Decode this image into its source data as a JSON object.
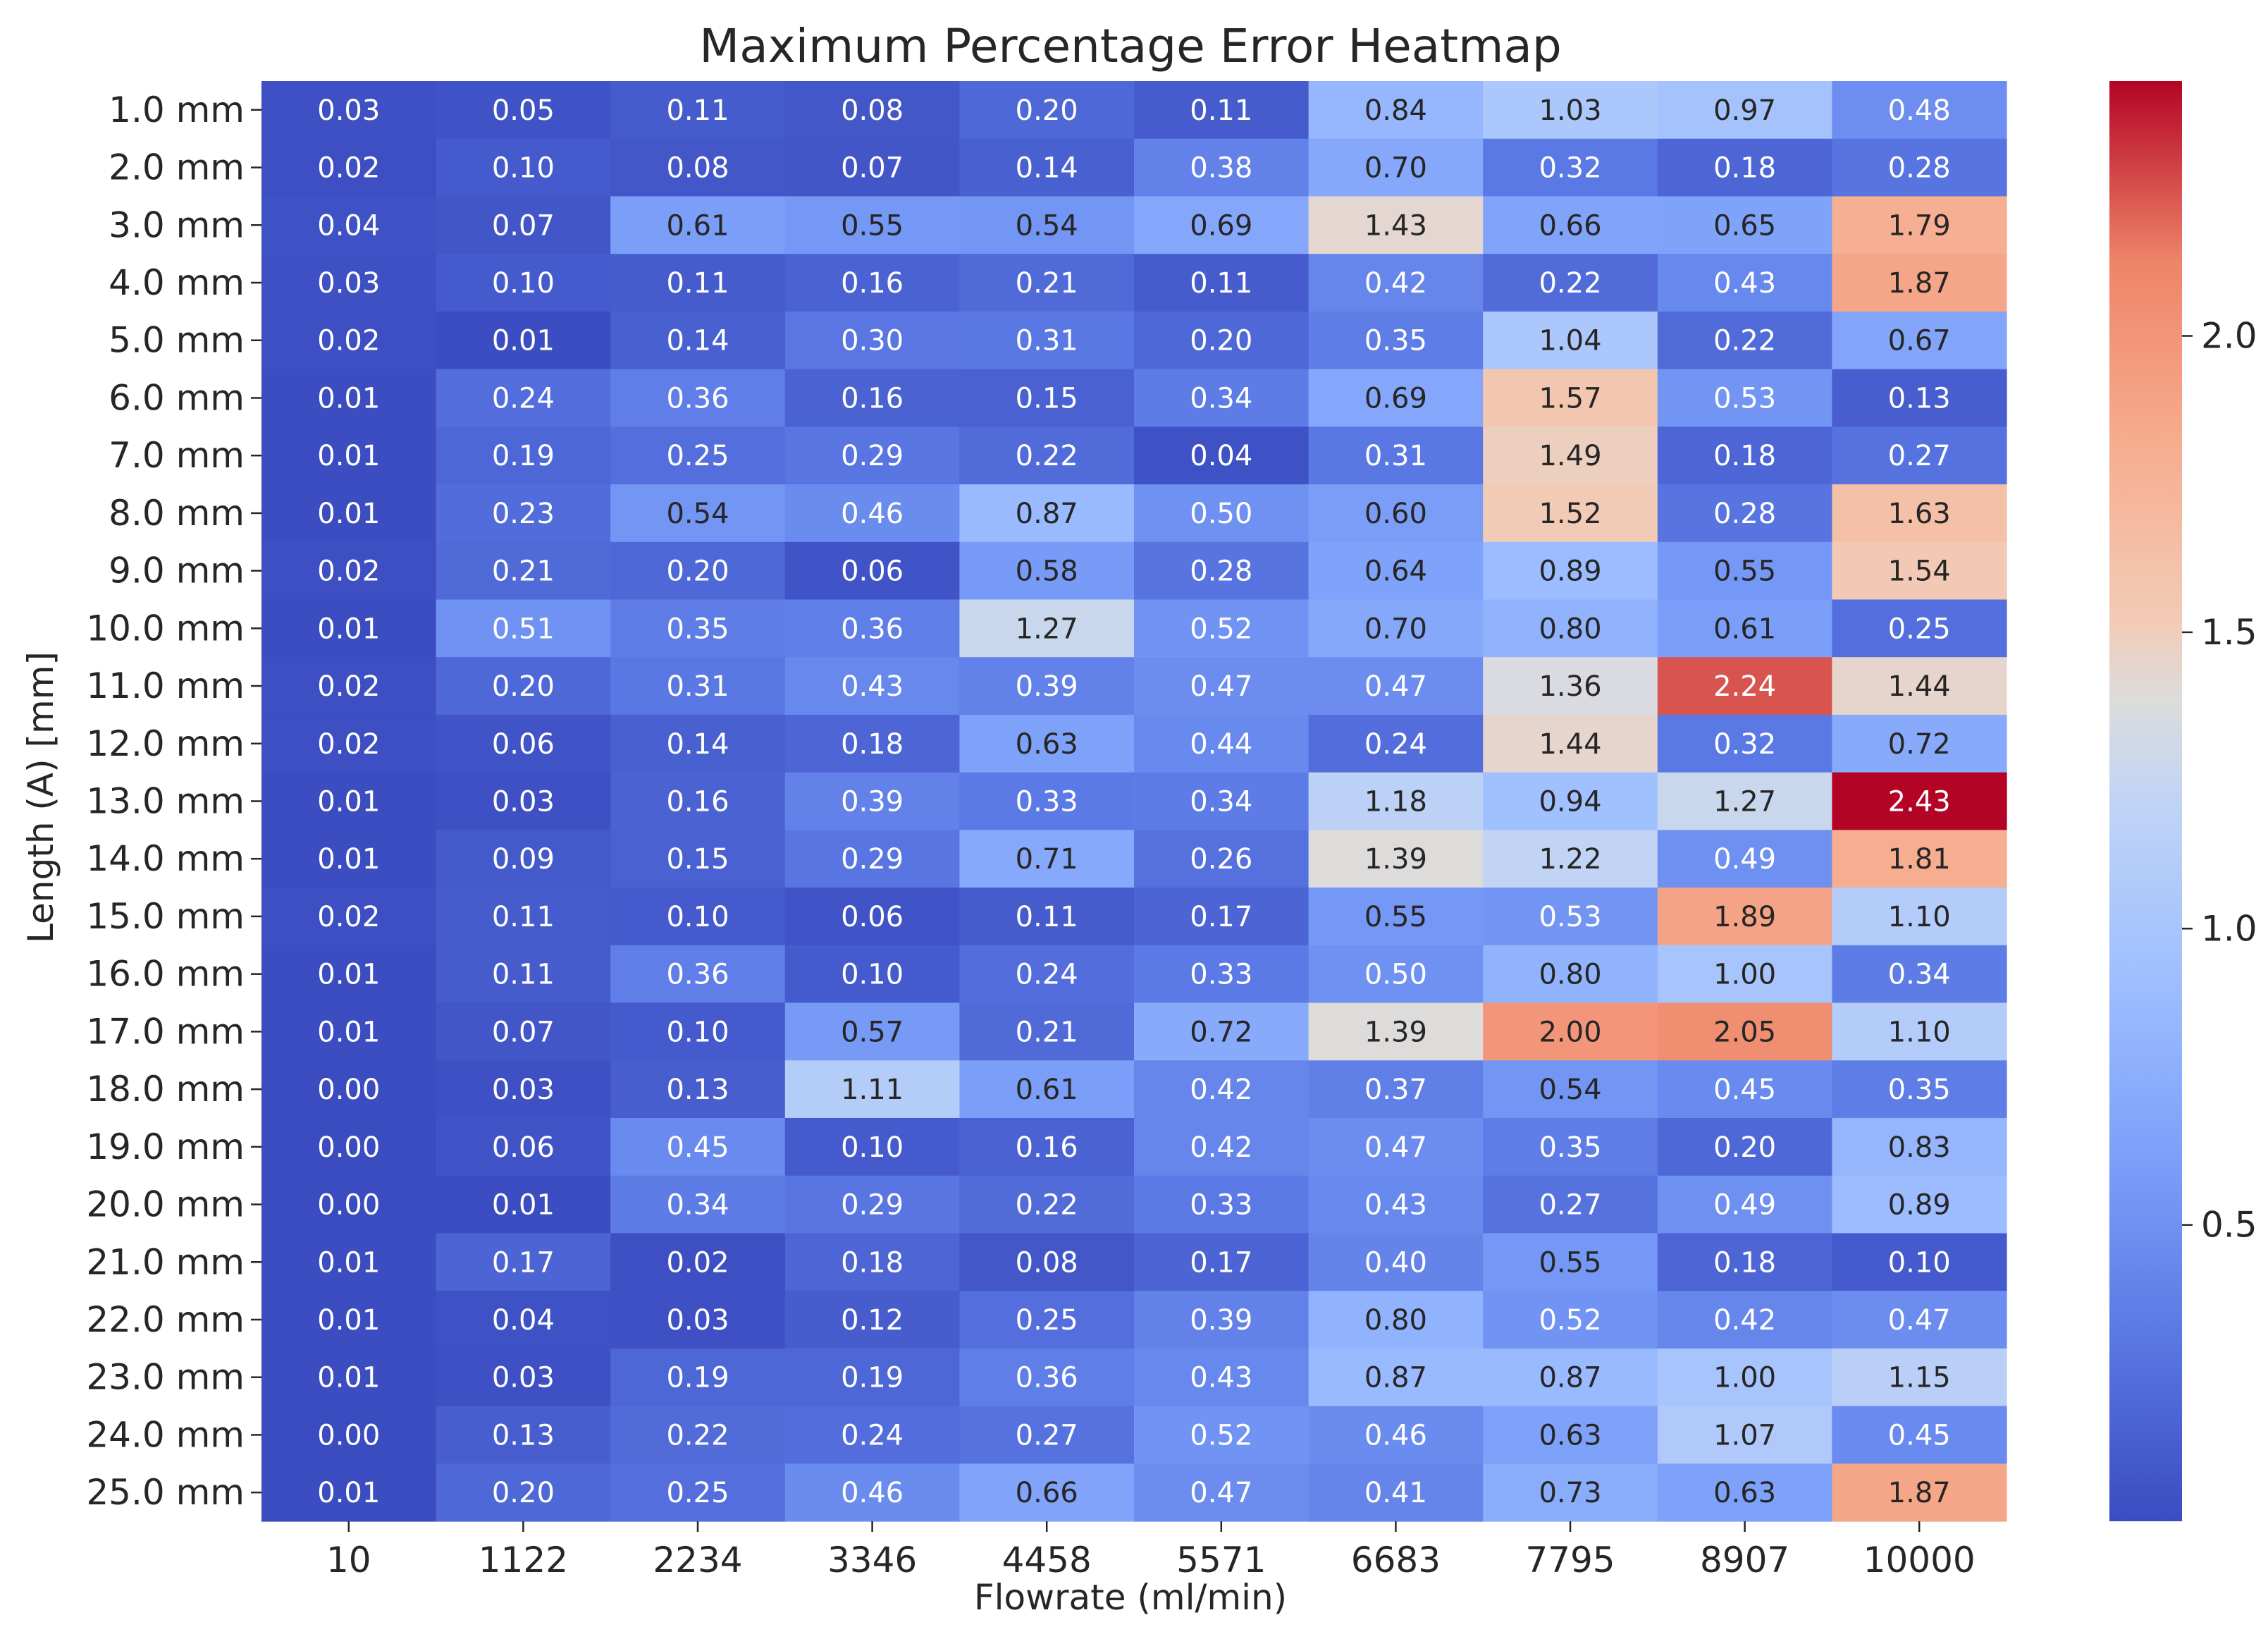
{
  "chart_data": {
    "type": "heatmap",
    "title": "Maximum Percentage Error Heatmap",
    "xlabel": "Flowrate (ml/min)",
    "ylabel": "Length (A) [mm]",
    "x_categories": [
      "10",
      "1122",
      "2234",
      "3346",
      "4458",
      "5571",
      "6683",
      "7795",
      "8907",
      "10000"
    ],
    "y_categories": [
      "1.0 mm",
      "2.0 mm",
      "3.0 mm",
      "4.0 mm",
      "5.0 mm",
      "6.0 mm",
      "7.0 mm",
      "8.0 mm",
      "9.0 mm",
      "10.0 mm",
      "11.0 mm",
      "12.0 mm",
      "13.0 mm",
      "14.0 mm",
      "15.0 mm",
      "16.0 mm",
      "17.0 mm",
      "18.0 mm",
      "19.0 mm",
      "20.0 mm",
      "21.0 mm",
      "22.0 mm",
      "23.0 mm",
      "24.0 mm",
      "25.0 mm"
    ],
    "values": [
      [
        "0.03",
        "0.05",
        "0.11",
        "0.08",
        "0.20",
        "0.11",
        "0.84",
        "1.03",
        "0.97",
        "0.48"
      ],
      [
        "0.02",
        "0.10",
        "0.08",
        "0.07",
        "0.14",
        "0.38",
        "0.70",
        "0.32",
        "0.18",
        "0.28"
      ],
      [
        "0.04",
        "0.07",
        "0.61",
        "0.55",
        "0.54",
        "0.69",
        "1.43",
        "0.66",
        "0.65",
        "1.79"
      ],
      [
        "0.03",
        "0.10",
        "0.11",
        "0.16",
        "0.21",
        "0.11",
        "0.42",
        "0.22",
        "0.43",
        "1.87"
      ],
      [
        "0.02",
        "0.01",
        "0.14",
        "0.30",
        "0.31",
        "0.20",
        "0.35",
        "1.04",
        "0.22",
        "0.67"
      ],
      [
        "0.01",
        "0.24",
        "0.36",
        "0.16",
        "0.15",
        "0.34",
        "0.69",
        "1.57",
        "0.53",
        "0.13"
      ],
      [
        "0.01",
        "0.19",
        "0.25",
        "0.29",
        "0.22",
        "0.04",
        "0.31",
        "1.49",
        "0.18",
        "0.27"
      ],
      [
        "0.01",
        "0.23",
        "0.54",
        "0.46",
        "0.87",
        "0.50",
        "0.60",
        "1.52",
        "0.28",
        "1.63"
      ],
      [
        "0.02",
        "0.21",
        "0.20",
        "0.06",
        "0.58",
        "0.28",
        "0.64",
        "0.89",
        "0.55",
        "1.54"
      ],
      [
        "0.01",
        "0.51",
        "0.35",
        "0.36",
        "1.27",
        "0.52",
        "0.70",
        "0.80",
        "0.61",
        "0.25"
      ],
      [
        "0.02",
        "0.20",
        "0.31",
        "0.43",
        "0.39",
        "0.47",
        "0.47",
        "1.36",
        "2.24",
        "1.44"
      ],
      [
        "0.02",
        "0.06",
        "0.14",
        "0.18",
        "0.63",
        "0.44",
        "0.24",
        "1.44",
        "0.32",
        "0.72"
      ],
      [
        "0.01",
        "0.03",
        "0.16",
        "0.39",
        "0.33",
        "0.34",
        "1.18",
        "0.94",
        "1.27",
        "2.43"
      ],
      [
        "0.01",
        "0.09",
        "0.15",
        "0.29",
        "0.71",
        "0.26",
        "1.39",
        "1.22",
        "0.49",
        "1.81"
      ],
      [
        "0.02",
        "0.11",
        "0.10",
        "0.06",
        "0.11",
        "0.17",
        "0.55",
        "0.53",
        "1.89",
        "1.10"
      ],
      [
        "0.01",
        "0.11",
        "0.36",
        "0.10",
        "0.24",
        "0.33",
        "0.50",
        "0.80",
        "1.00",
        "0.34"
      ],
      [
        "0.01",
        "0.07",
        "0.10",
        "0.57",
        "0.21",
        "0.72",
        "1.39",
        "2.00",
        "2.05",
        "1.10"
      ],
      [
        "0.00",
        "0.03",
        "0.13",
        "1.11",
        "0.61",
        "0.42",
        "0.37",
        "0.54",
        "0.45",
        "0.35"
      ],
      [
        "0.00",
        "0.06",
        "0.45",
        "0.10",
        "0.16",
        "0.42",
        "0.47",
        "0.35",
        "0.20",
        "0.83"
      ],
      [
        "0.00",
        "0.01",
        "0.34",
        "0.29",
        "0.22",
        "0.33",
        "0.43",
        "0.27",
        "0.49",
        "0.89"
      ],
      [
        "0.01",
        "0.17",
        "0.02",
        "0.18",
        "0.08",
        "0.17",
        "0.40",
        "0.55",
        "0.18",
        "0.10"
      ],
      [
        "0.01",
        "0.04",
        "0.03",
        "0.12",
        "0.25",
        "0.39",
        "0.80",
        "0.52",
        "0.42",
        "0.47"
      ],
      [
        "0.01",
        "0.03",
        "0.19",
        "0.19",
        "0.36",
        "0.43",
        "0.87",
        "0.87",
        "1.00",
        "1.15"
      ],
      [
        "0.00",
        "0.13",
        "0.22",
        "0.24",
        "0.27",
        "0.52",
        "0.46",
        "0.63",
        "1.07",
        "0.45"
      ],
      [
        "0.01",
        "0.20",
        "0.25",
        "0.46",
        "0.66",
        "0.47",
        "0.41",
        "0.73",
        "0.63",
        "1.87"
      ]
    ],
    "colormap": "coolwarm",
    "colorbar": {
      "range": [
        0.0,
        2.43
      ],
      "ticks": [
        "0.5",
        "1.0",
        "1.5",
        "2.0"
      ],
      "placement": "right"
    },
    "grid": false,
    "legend": "none"
  }
}
